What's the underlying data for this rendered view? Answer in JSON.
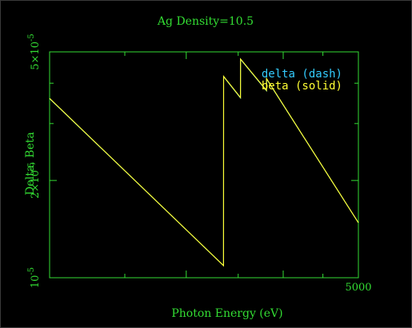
{
  "chart_data": {
    "type": "line",
    "title": "Ag Density=10.5",
    "xlabel": "Photon Energy (eV)",
    "ylabel": "Delta, Beta",
    "x_scale": "log",
    "y_scale": "log",
    "xlim": [
      2000,
      5000
    ],
    "ylim": [
      1e-05,
      5e-05
    ],
    "x_tick_labels": [
      {
        "value": 5000,
        "label": "5000"
      }
    ],
    "y_tick_labels": [
      {
        "value": 1e-05,
        "mantissa": "10",
        "exponent": "-5"
      },
      {
        "value": 2e-05,
        "mantissa": "2×10",
        "exponent": "-5"
      },
      {
        "value": 5e-05,
        "mantissa": "5×10",
        "exponent": "-5"
      }
    ],
    "legend": {
      "placement": "top-right",
      "entries": [
        {
          "label": "delta (dash)",
          "color": "#33ccff"
        },
        {
          "label": "beta (solid)",
          "color": "#ffff33"
        }
      ]
    },
    "series": [
      {
        "name": "beta (solid)",
        "color": "#ffff33",
        "x": [
          2000,
          3351,
          3352,
          3524,
          3525,
          3806,
          3807,
          5000
        ],
        "y": [
          3.59e-05,
          1.09e-05,
          4.2e-05,
          3.61e-05,
          4.75e-05,
          3.8e-05,
          4.13e-05,
          1.48e-05
        ]
      },
      {
        "name": "delta (dash)",
        "color": "#33ccff",
        "x": [
          2000,
          3351,
          3352,
          3524,
          3525,
          3806,
          3807,
          5000
        ],
        "y": [
          3.58e-05,
          1.09e-05,
          4.19e-05,
          3.6e-05,
          4.74e-05,
          3.79e-05,
          4.12e-05,
          1.48e-05
        ]
      }
    ]
  }
}
